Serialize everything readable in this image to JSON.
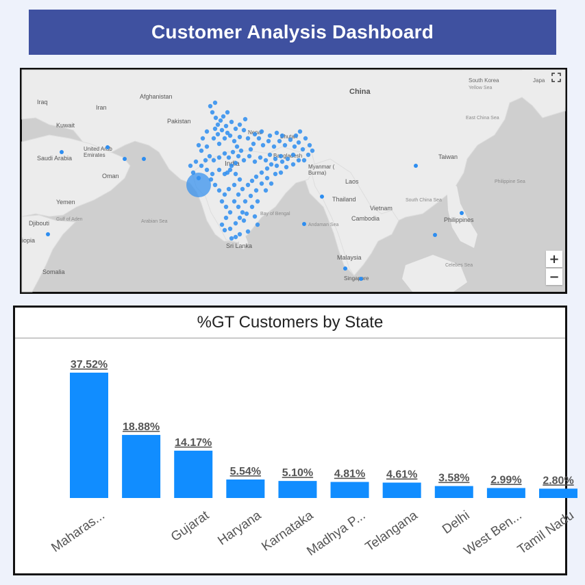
{
  "header": {
    "title": "Customer Analysis Dashboard"
  },
  "map": {
    "labels": {
      "china": "China",
      "south_korea": "South Korea",
      "japan": "Japa",
      "iraq": "Iraq",
      "iran": "Iran",
      "afghanistan": "Afghanistan",
      "pakistan": "Pakistan",
      "kuwait": "Kuwait",
      "saudi_arabia": "Saudi Arabia",
      "uae": "United Arab Emirates",
      "oman": "Oman",
      "yemen": "Yemen",
      "djibouti": "Djibouti",
      "ethiopia": "iopia",
      "somalia": "Somalia",
      "nepal": "Nepal",
      "bhutan": "Bhutan",
      "bangladesh": "Bangladesh",
      "india": "India",
      "myanmar": "Myanmar (Burma)",
      "laos": "Laos",
      "thailand": "Thailand",
      "vietnam": "Vietnam",
      "cambodia": "Cambodia",
      "taiwan": "Taiwan",
      "philippines": "Philippines",
      "sri_lanka": "Sri Lanka",
      "malaysia": "Malaysia",
      "singapore": "Singapore",
      "arabian_sea": "Arabian Sea",
      "bay_of_bengal": "Bay of Bengal",
      "east_china_sea": "East China Sea",
      "yellow_sea": "Yellow Sea",
      "philippine_sea": "Philippine Sea",
      "south_china_sea": "South China Sea",
      "gulf_of_aden": "Gulf of Aden",
      "andaman_sea": "Andaman Sea",
      "celebes_sea": "Celebes Sea"
    },
    "zoom_in": "+",
    "zoom_out": "−",
    "dot_color": "#2d8df0"
  },
  "chart_data": {
    "type": "bar",
    "title": "%GT Customers by State",
    "categories": [
      "Maharas...",
      "",
      "Gujarat",
      "Haryana",
      "Karnataka",
      "Madhya P...",
      "Telangana",
      "Delhi",
      "West Ben...",
      "Tamil Nadu"
    ],
    "values": [
      37.52,
      18.88,
      14.17,
      5.54,
      5.1,
      4.81,
      4.61,
      3.58,
      2.99,
      2.8
    ],
    "data_labels": [
      "37.52%",
      "18.88%",
      "14.17%",
      "5.54%",
      "5.10%",
      "4.81%",
      "4.61%",
      "3.58%",
      "2.99%",
      "2.80%"
    ],
    "xlabel": "",
    "ylabel": "",
    "ylim": [
      0,
      40
    ],
    "bar_color": "#118dff",
    "grid": false
  }
}
